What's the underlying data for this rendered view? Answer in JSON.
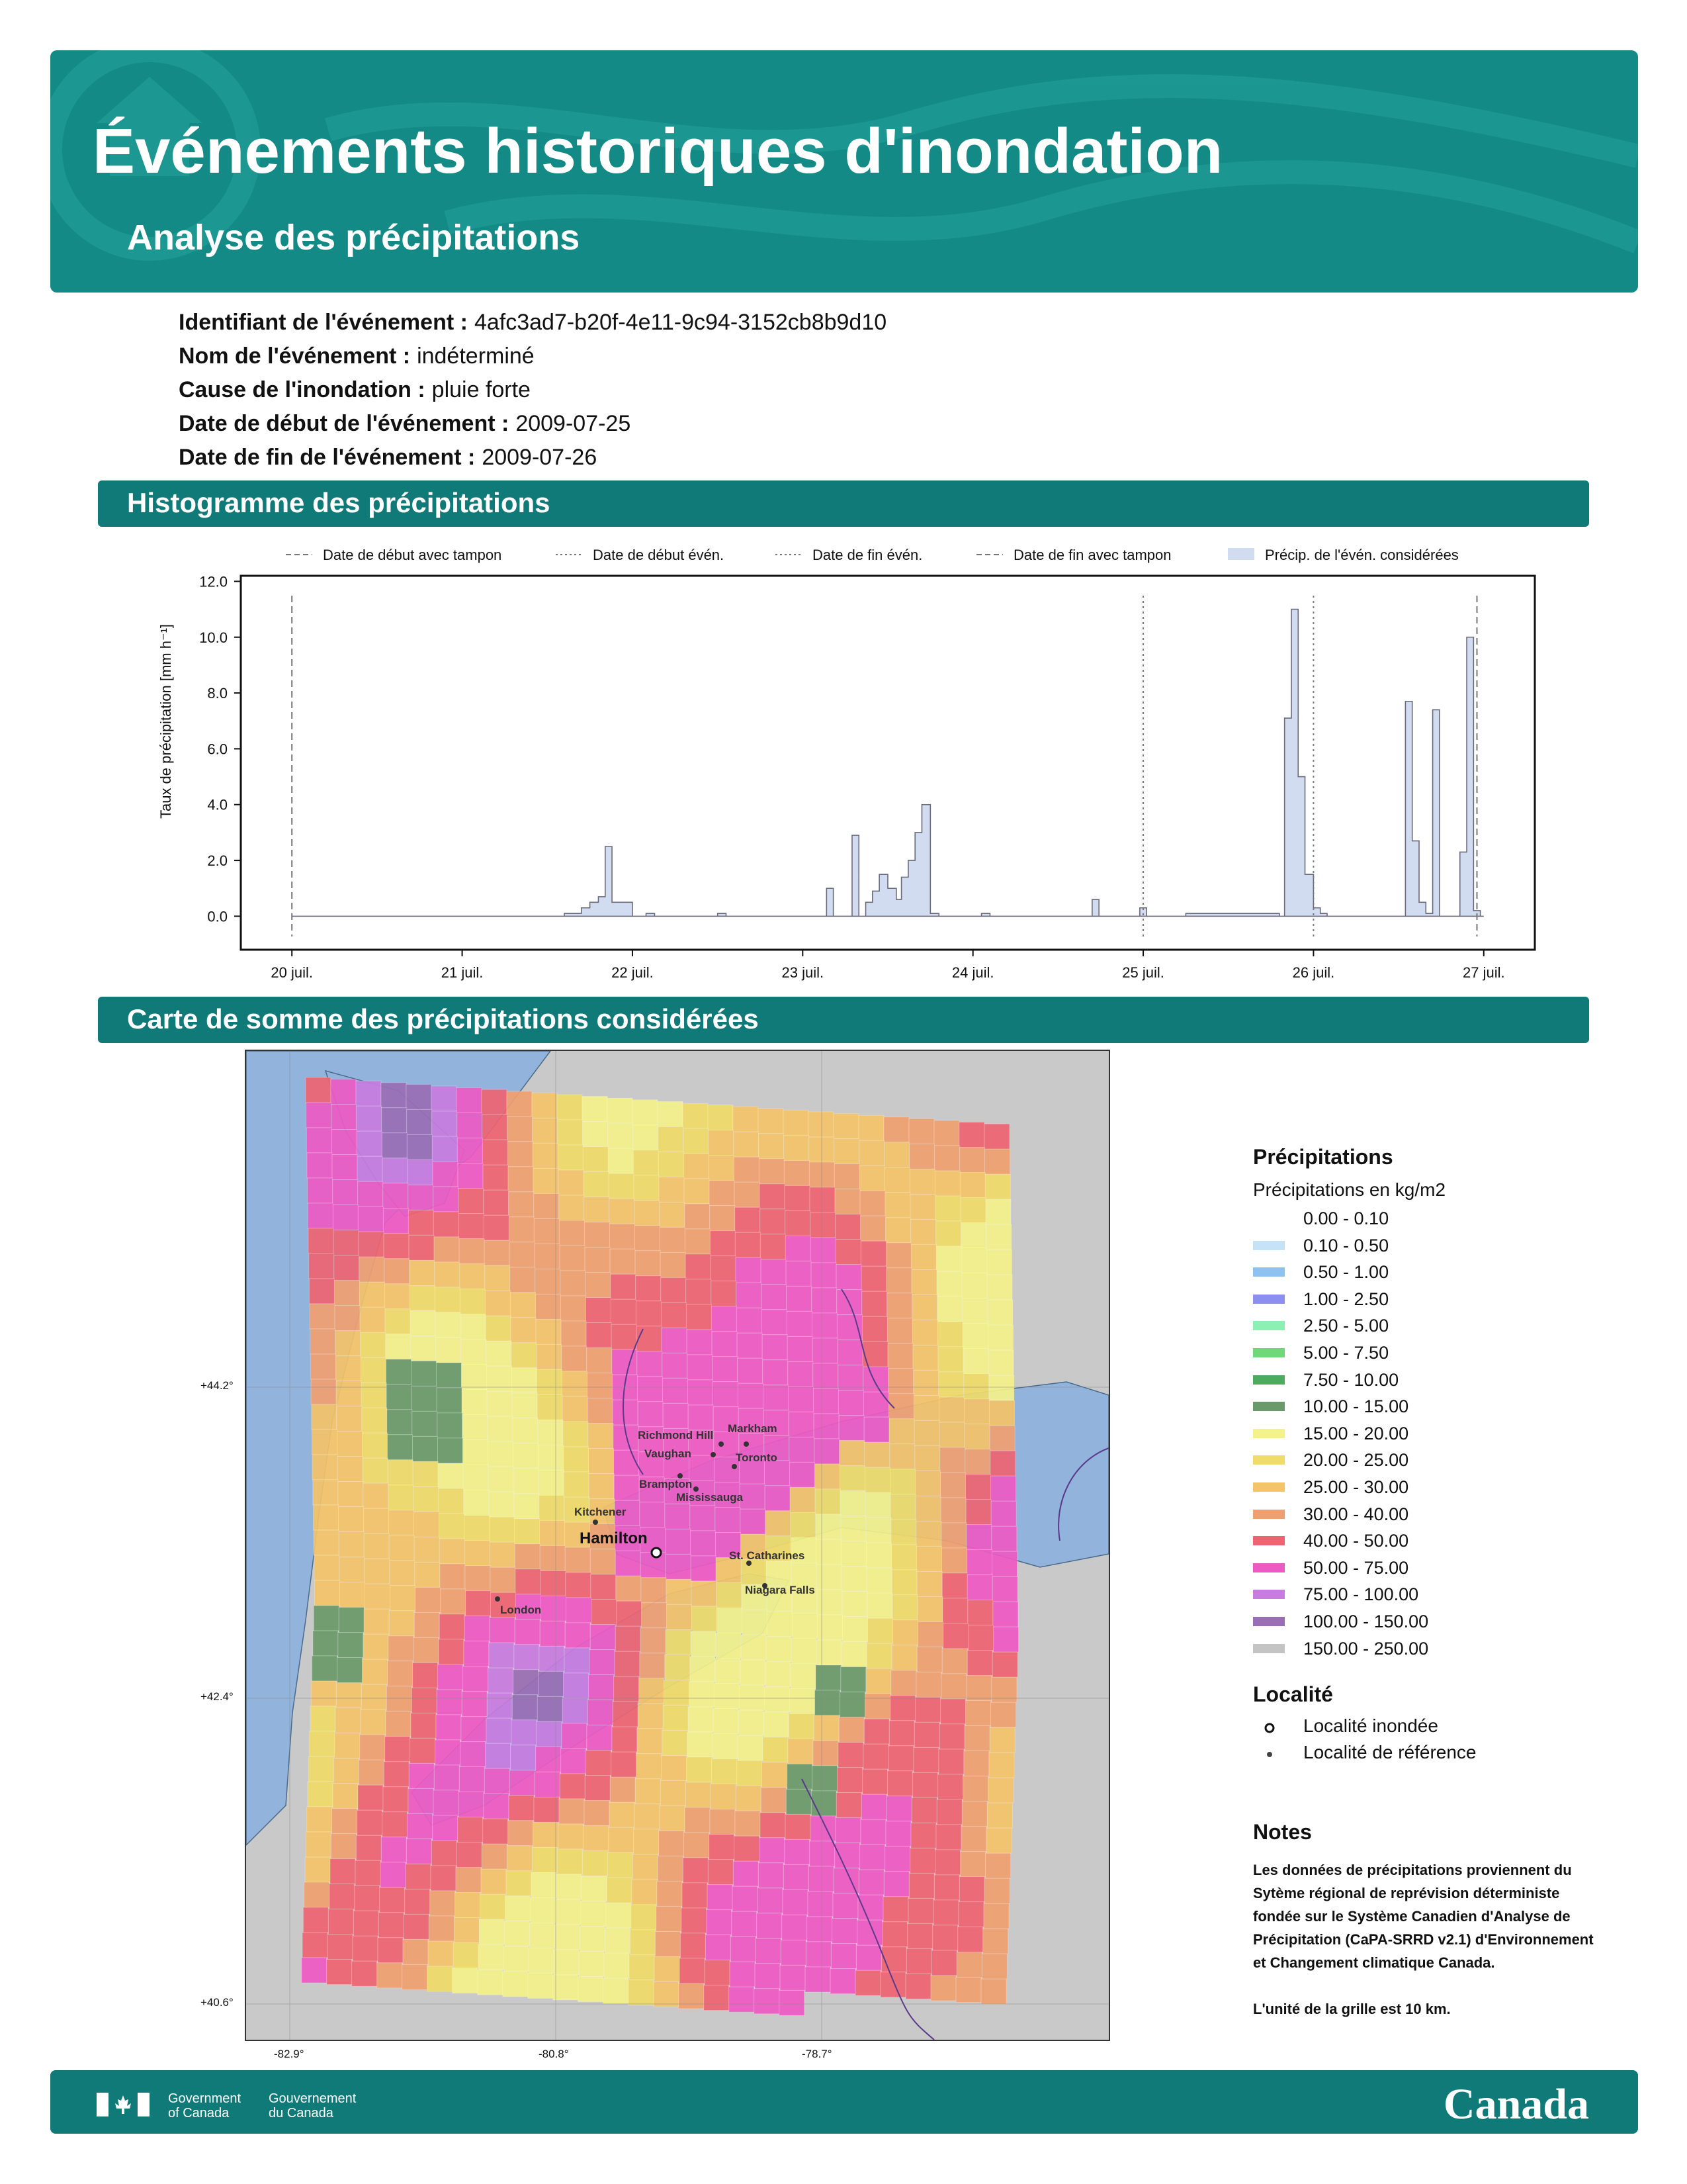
{
  "header": {
    "title": "Événements historiques d'inondation",
    "subtitle": "Analyse des précipitations"
  },
  "event": [
    {
      "label": "Identifiant de l'événement :",
      "value": "4afc3ad7-b20f-4e11-9c94-3152cb8b9d10"
    },
    {
      "label": "Nom de l'événement :",
      "value": "indéterminé"
    },
    {
      "label": "Cause de l'inondation :",
      "value": "pluie forte"
    },
    {
      "label": "Date de début de l'événement :",
      "value": "2009-07-25"
    },
    {
      "label": "Date de fin de l'événement :",
      "value": "2009-07-26"
    }
  ],
  "sections": {
    "histogram": "Histogramme des précipitations",
    "map": "Carte de somme des précipitations considérées"
  },
  "chart_data": {
    "type": "area",
    "ylabel": "Taux de précipitation [mm h⁻¹]",
    "ylim": [
      -1.2,
      12.2
    ],
    "yticks": [
      "0.0",
      "2.0",
      "4.0",
      "6.0",
      "8.0",
      "10.0",
      "12.0"
    ],
    "xlim": [
      19.7,
      27.3
    ],
    "xticks": [
      {
        "x": 20,
        "label": "20 juil."
      },
      {
        "x": 21,
        "label": "21 juil."
      },
      {
        "x": 22,
        "label": "22 juil."
      },
      {
        "x": 23,
        "label": "23 juil."
      },
      {
        "x": 24,
        "label": "24 juil."
      },
      {
        "x": 25,
        "label": "25 juil."
      },
      {
        "x": 26,
        "label": "26 juil."
      },
      {
        "x": 27,
        "label": "27 juil."
      }
    ],
    "legend": {
      "position": "top",
      "entries": [
        {
          "label": "Date de début avec tampon",
          "style": "dashed"
        },
        {
          "label": "Date de début évén.",
          "style": "dotted"
        },
        {
          "label": "Date de fin évén.",
          "style": "dotted"
        },
        {
          "label": "Date de fin avec tampon",
          "style": "dashed"
        },
        {
          "label": "Précip. de l'évén. considérées",
          "style": "area"
        }
      ]
    },
    "vlines": [
      {
        "x": 20.0,
        "style": "dashed"
      },
      {
        "x": 25.0,
        "style": "dotted"
      },
      {
        "x": 26.0,
        "style": "dotted"
      },
      {
        "x": 26.96,
        "style": "dashed"
      }
    ],
    "series": {
      "x": [
        20.0,
        21.5,
        21.6,
        21.7,
        21.75,
        21.8,
        21.84,
        21.88,
        21.92,
        22.0,
        22.08,
        22.13,
        22.17,
        22.2,
        22.45,
        22.5,
        22.55,
        22.6,
        23.1,
        23.14,
        23.18,
        23.25,
        23.29,
        23.33,
        23.37,
        23.41,
        23.45,
        23.5,
        23.55,
        23.58,
        23.62,
        23.66,
        23.7,
        23.75,
        23.8,
        24.0,
        24.05,
        24.1,
        24.6,
        24.7,
        24.74,
        24.95,
        24.98,
        25.02,
        25.25,
        25.5,
        25.8,
        25.83,
        25.87,
        25.91,
        25.95,
        26.0,
        26.04,
        26.08,
        26.5,
        26.54,
        26.58,
        26.62,
        26.66,
        26.7,
        26.74,
        26.78,
        26.82,
        26.86,
        26.9,
        26.94,
        26.98,
        27.0
      ],
      "y": [
        0.0,
        0.0,
        0.1,
        0.3,
        0.5,
        0.7,
        2.5,
        0.5,
        0.5,
        0.0,
        0.1,
        0.0,
        0.0,
        0.0,
        0.0,
        0.1,
        0.0,
        0.0,
        0.0,
        1.0,
        0.0,
        0.0,
        2.9,
        0.0,
        0.5,
        0.9,
        1.5,
        1.0,
        0.6,
        1.4,
        2.0,
        3.0,
        4.0,
        0.1,
        0.0,
        0.0,
        0.1,
        0.0,
        0.0,
        0.6,
        0.0,
        0.0,
        0.3,
        0.0,
        0.1,
        0.1,
        0.0,
        7.1,
        11.0,
        5.0,
        1.5,
        0.3,
        0.1,
        0.0,
        0.0,
        7.7,
        2.7,
        0.5,
        0.1,
        7.4,
        0.0,
        0.0,
        0.0,
        2.3,
        10.0,
        0.2,
        0.0,
        0.0
      ]
    }
  },
  "map": {
    "lat_labels": [
      {
        "label": "+44.2°",
        "lat": 44.2
      },
      {
        "label": "+42.4°",
        "lat": 42.4
      },
      {
        "label": "+40.6°",
        "lat": 40.6
      }
    ],
    "lon_labels": [
      {
        "label": "-82.9°",
        "lon": -82.9
      },
      {
        "label": "-80.8°",
        "lon": -80.8
      },
      {
        "label": "-78.7°",
        "lon": -78.7
      }
    ],
    "localities": [
      {
        "name": "Richmond Hill",
        "type": "reference"
      },
      {
        "name": "Markham",
        "type": "reference"
      },
      {
        "name": "Vaughan",
        "type": "reference"
      },
      {
        "name": "Toronto",
        "type": "reference"
      },
      {
        "name": "Brampton",
        "type": "reference"
      },
      {
        "name": "Mississauga",
        "type": "reference"
      },
      {
        "name": "Kitchener",
        "type": "reference"
      },
      {
        "name": "Hamilton",
        "type": "flooded"
      },
      {
        "name": "St. Catharines",
        "type": "reference"
      },
      {
        "name": "Niagara Falls",
        "type": "reference"
      },
      {
        "name": "London",
        "type": "reference"
      }
    ]
  },
  "legend": {
    "title": "Précipitations",
    "subtitle": "Précipitations en kg/m2",
    "classes": [
      {
        "label": "0.00 - 0.10",
        "color": "#ffffff"
      },
      {
        "label": "0.10 - 0.50",
        "color": "#c6e2f7"
      },
      {
        "label": "0.50 - 1.00",
        "color": "#8cc3f0"
      },
      {
        "label": "1.00 - 2.50",
        "color": "#8c8ef0"
      },
      {
        "label": "2.50 - 5.00",
        "color": "#8cf0b4"
      },
      {
        "label": "5.00 - 7.50",
        "color": "#6fd97a"
      },
      {
        "label": "7.50 - 10.00",
        "color": "#4cab5e"
      },
      {
        "label": "10.00 - 15.00",
        "color": "#6a9a6a"
      },
      {
        "label": "15.00 - 20.00",
        "color": "#f4f28a"
      },
      {
        "label": "20.00 - 25.00",
        "color": "#f0dc6a"
      },
      {
        "label": "25.00 - 30.00",
        "color": "#f4c46a"
      },
      {
        "label": "30.00 - 40.00",
        "color": "#f0a070"
      },
      {
        "label": "40.00 - 50.00",
        "color": "#ee6472"
      },
      {
        "label": "50.00 - 75.00",
        "color": "#ee5ac4"
      },
      {
        "label": "75.00 - 100.00",
        "color": "#c87ce0"
      },
      {
        "label": "100.00 - 150.00",
        "color": "#9a6eb4"
      },
      {
        "label": "150.00 - 250.00",
        "color": "#c4c4c4"
      }
    ],
    "locality_title": "Localité",
    "locality_flooded": "Localité inondée",
    "locality_reference": "Localité de référence"
  },
  "notes": {
    "title": "Notes",
    "paragraph1": "Les données de précipitations proviennent du Sytème régional de reprévision déterministe fondée sur le Système Canadien d'Analyse de Précipitation (CaPA-SRRD v2.1) d'Environnement et Changement climatique Canada.",
    "paragraph2": "L'unité de la grille est 10 km."
  },
  "footer": {
    "gov_en": "Government\nof Canada",
    "gov_fr": "Gouvernement\ndu Canada",
    "wordmark": "Canada"
  }
}
